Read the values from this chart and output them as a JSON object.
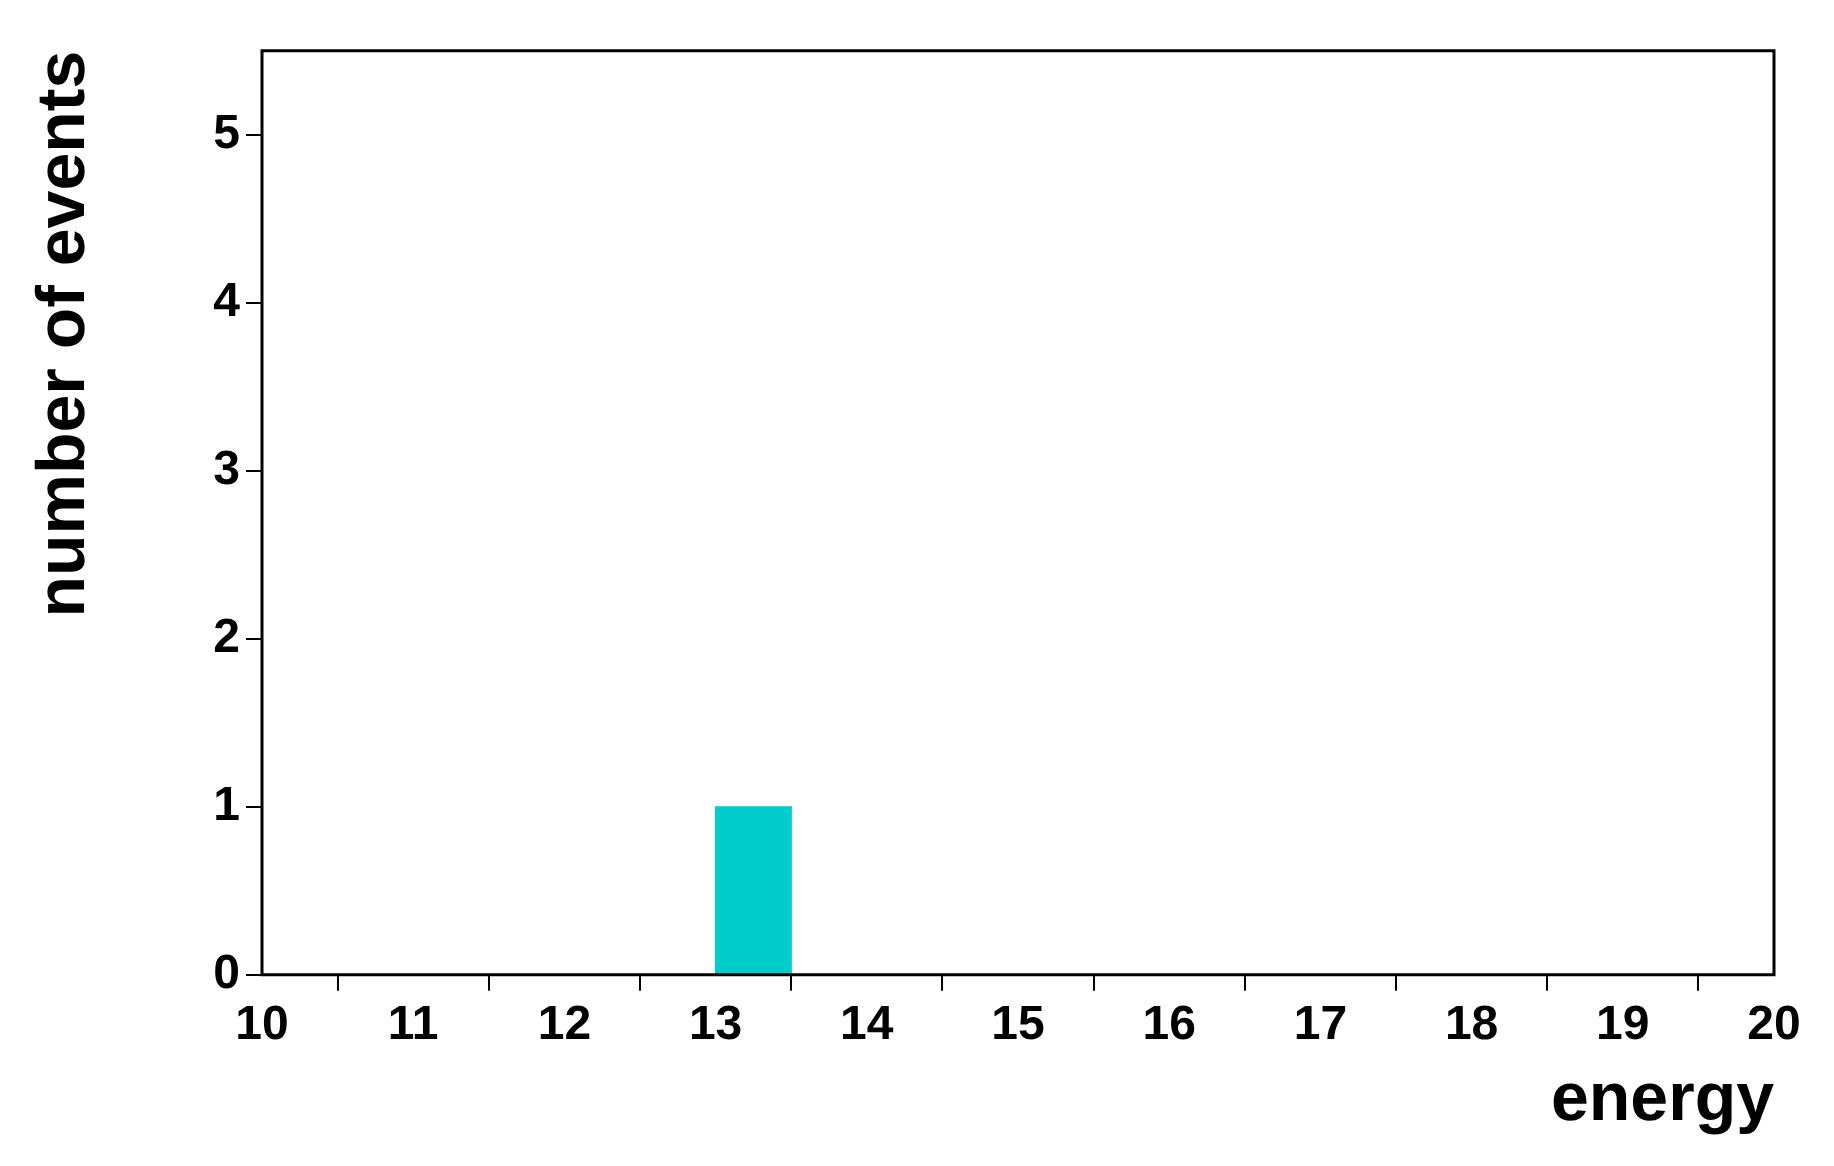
{
  "chart_data": {
    "type": "histogram",
    "xlabel": "energy",
    "ylabel": "number of events",
    "bins": [
      10,
      10.5,
      11,
      11.5,
      12,
      12.5,
      13,
      13.5,
      14,
      14.5,
      15,
      15.5,
      16,
      16.5,
      17,
      17.5,
      18,
      18.5,
      19,
      19.5,
      20
    ],
    "values": [
      0,
      0,
      0,
      0,
      0,
      0,
      1,
      0,
      0,
      0,
      0,
      0,
      0,
      0,
      0,
      0,
      0,
      0,
      0,
      0
    ],
    "color": "#00cccc",
    "xlim": [
      10,
      20
    ],
    "xticks": [
      10,
      11,
      12,
      13,
      14,
      15,
      16,
      17,
      18,
      19,
      20
    ],
    "ylim": [
      0,
      5.5
    ],
    "yticks": [
      0,
      1,
      2,
      3,
      4,
      5
    ],
    "grid": false,
    "legend": false
  }
}
